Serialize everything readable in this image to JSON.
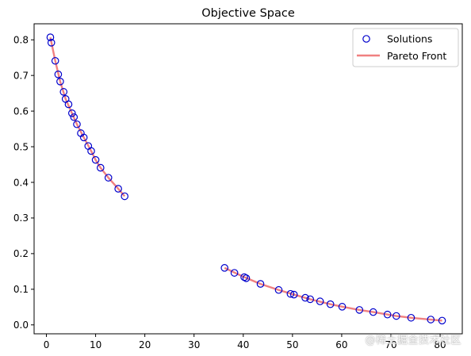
{
  "chart_data": {
    "type": "scatter",
    "title": "Objective Space",
    "xlabel": "",
    "ylabel": "",
    "xlim": [
      -2.5,
      84.5
    ],
    "ylim": [
      -0.025,
      0.845
    ],
    "xticks": [
      0,
      10,
      20,
      30,
      40,
      50,
      60,
      70,
      80
    ],
    "yticks": [
      0.0,
      0.1,
      0.2,
      0.3,
      0.4,
      0.5,
      0.6,
      0.7,
      0.8
    ],
    "ytick_labels": [
      "0.0",
      "0.1",
      "0.2",
      "0.3",
      "0.4",
      "0.5",
      "0.6",
      "0.7",
      "0.8"
    ],
    "grid": false,
    "legend_position": "top-right",
    "series": [
      {
        "name": "Solutions",
        "kind": "scatter",
        "color": "#0000cc",
        "points": [
          [
            0.8,
            0.807
          ],
          [
            1.0,
            0.792
          ],
          [
            1.8,
            0.741
          ],
          [
            2.4,
            0.703
          ],
          [
            2.8,
            0.683
          ],
          [
            3.5,
            0.654
          ],
          [
            3.9,
            0.634
          ],
          [
            4.5,
            0.619
          ],
          [
            5.2,
            0.594
          ],
          [
            5.6,
            0.583
          ],
          [
            6.2,
            0.563
          ],
          [
            7.0,
            0.538
          ],
          [
            7.6,
            0.526
          ],
          [
            8.5,
            0.502
          ],
          [
            9.1,
            0.488
          ],
          [
            10.0,
            0.463
          ],
          [
            11.0,
            0.441
          ],
          [
            12.6,
            0.413
          ],
          [
            14.6,
            0.382
          ],
          [
            15.9,
            0.361
          ],
          [
            36.2,
            0.16
          ],
          [
            38.2,
            0.146
          ],
          [
            40.2,
            0.134
          ],
          [
            40.6,
            0.131
          ],
          [
            43.5,
            0.115
          ],
          [
            47.2,
            0.098
          ],
          [
            49.6,
            0.087
          ],
          [
            50.3,
            0.085
          ],
          [
            52.6,
            0.076
          ],
          [
            53.6,
            0.072
          ],
          [
            55.6,
            0.066
          ],
          [
            57.7,
            0.058
          ],
          [
            60.1,
            0.051
          ],
          [
            63.6,
            0.042
          ],
          [
            66.4,
            0.036
          ],
          [
            69.3,
            0.029
          ],
          [
            71.1,
            0.025
          ],
          [
            74.1,
            0.02
          ],
          [
            78.1,
            0.015
          ],
          [
            80.4,
            0.012
          ]
        ]
      },
      {
        "name": "Pareto Front",
        "kind": "line",
        "color": "#f08080",
        "segments": [
          [
            [
              0.8,
              0.807
            ],
            [
              1.8,
              0.741
            ],
            [
              2.8,
              0.683
            ],
            [
              3.9,
              0.634
            ],
            [
              5.2,
              0.594
            ],
            [
              6.2,
              0.563
            ],
            [
              7.6,
              0.526
            ],
            [
              9.1,
              0.488
            ],
            [
              10.0,
              0.463
            ],
            [
              11.0,
              0.441
            ],
            [
              12.6,
              0.413
            ],
            [
              14.6,
              0.382
            ],
            [
              15.9,
              0.361
            ]
          ],
          [
            [
              36.2,
              0.16
            ],
            [
              40.2,
              0.134
            ],
            [
              43.5,
              0.115
            ],
            [
              47.2,
              0.098
            ],
            [
              50.3,
              0.085
            ],
            [
              53.6,
              0.072
            ],
            [
              57.7,
              0.058
            ],
            [
              60.1,
              0.051
            ],
            [
              63.6,
              0.042
            ],
            [
              66.4,
              0.036
            ],
            [
              71.1,
              0.025
            ],
            [
              74.1,
              0.02
            ],
            [
              78.1,
              0.015
            ],
            [
              80.4,
              0.012
            ]
          ]
        ]
      }
    ]
  },
  "watermark": "@稀土掘金技术社区"
}
